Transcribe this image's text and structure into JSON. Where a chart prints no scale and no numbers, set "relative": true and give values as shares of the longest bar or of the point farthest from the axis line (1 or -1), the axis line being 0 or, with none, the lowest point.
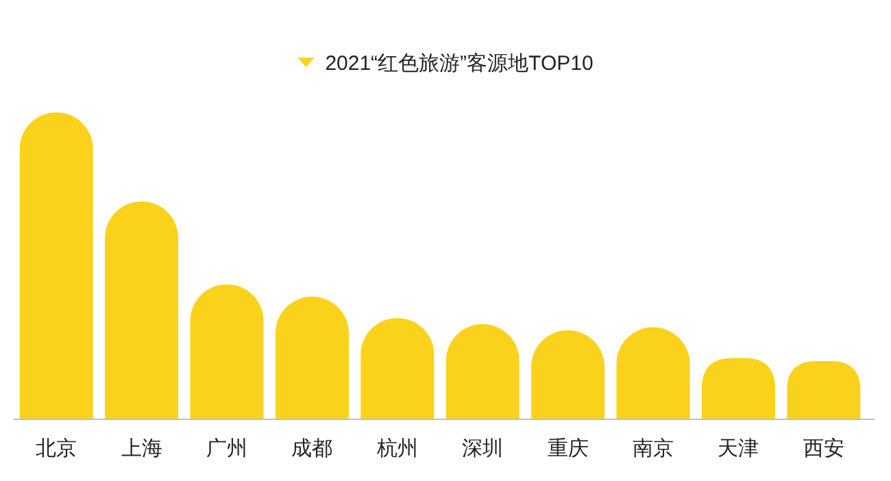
{
  "chart_data": {
    "type": "bar",
    "relative": true,
    "legend": "top",
    "categories": [
      "北京",
      "上海",
      "广州",
      "成都",
      "杭州",
      "深圳",
      "重庆",
      "南京",
      "天津",
      "西安"
    ],
    "series": [
      {
        "name": "2021“红色旅游”客源地TOP10",
        "color": "#fad21c",
        "values": [
          1,
          0.71,
          0.44,
          0.4,
          0.33,
          0.31,
          0.29,
          0.3,
          0.2,
          0.19
        ]
      }
    ]
  }
}
